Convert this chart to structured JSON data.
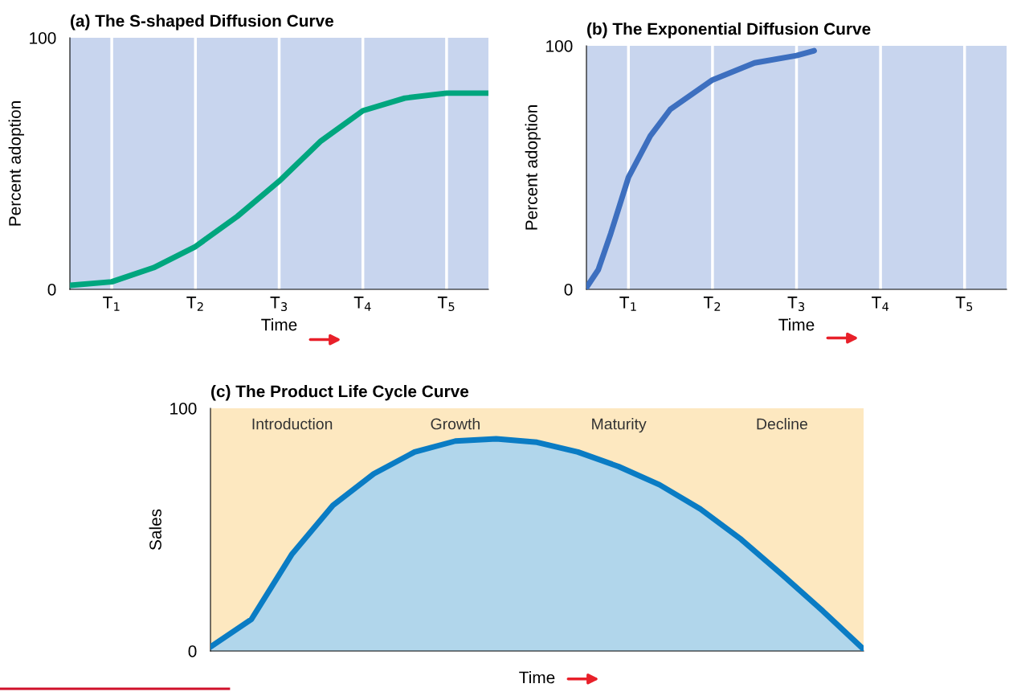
{
  "chart_data": [
    {
      "type": "line",
      "title": "(a) The S-shaped Diffusion Curve",
      "xlabel": "Time",
      "ylabel": "Percent adoption",
      "x": [
        0,
        0.5,
        1.0,
        1.5,
        2.0,
        2.5,
        3.0,
        3.5,
        4.0,
        4.5,
        5.0
      ],
      "series": [
        {
          "color": "#00a67e",
          "values": [
            1.6,
            3,
            8.6,
            17,
            29,
            43,
            59,
            71,
            76,
            78,
            78
          ]
        }
      ],
      "xlim": [
        0,
        5
      ],
      "xticks": [
        {
          "value": 0.5,
          "label": "T$_{1}$"
        },
        {
          "value": 1.5,
          "label": "T$_{2}$"
        },
        {
          "value": 2.5,
          "label": "T$_{3}$"
        },
        {
          "value": 3.5,
          "label": "T$_{4}$"
        },
        {
          "value": 4.5,
          "label": "T$_{5}$"
        }
      ],
      "ylim": [
        0,
        100
      ],
      "yticks": [
        0,
        100
      ],
      "grid": "x",
      "marker": "none",
      "line_style": "solid"
    },
    {
      "type": "line",
      "title": "(b) The Exponential Diffusion Curve",
      "xlabel": "Time",
      "ylabel": "Percent adoption",
      "x": [
        0,
        0.14,
        0.29,
        0.5,
        0.76,
        1.0,
        1.5,
        2.0,
        2.5,
        2.71
      ],
      "series": [
        {
          "color": "#3d6fbf",
          "values": [
            0.7,
            8,
            23,
            46,
            63,
            74,
            86,
            93,
            96,
            98
          ]
        }
      ],
      "xlim": [
        0,
        5
      ],
      "xticks": [
        {
          "value": 0.5,
          "label": "T$_{1}$"
        },
        {
          "value": 1.5,
          "label": "T$_{2}$"
        },
        {
          "value": 2.5,
          "label": "T$_{3}$"
        },
        {
          "value": 3.5,
          "label": "T$_{4}$"
        },
        {
          "value": 4.5,
          "label": "T$_{5}$"
        }
      ],
      "ylim": [
        0,
        100
      ],
      "yticks": [
        0,
        100
      ],
      "grid": "x",
      "marker": "none",
      "line_style": "solid"
    },
    {
      "type": "area",
      "title": "(c) The Product Life Cycle Curve",
      "xlabel": "Time",
      "ylabel": "Sales",
      "categories": [
        null,
        null,
        null,
        null,
        null,
        null,
        null,
        null,
        null,
        null,
        null,
        null,
        null,
        null,
        null,
        null,
        null
      ],
      "series": [
        {
          "color": "#0a7cc4",
          "values": [
            1.7,
            13,
            40,
            60,
            73,
            82,
            86.5,
            87.4,
            86,
            82,
            76,
            68.5,
            58.5,
            46,
            31.5,
            16.5,
            0.7
          ]
        }
      ],
      "ylim": [
        0,
        100
      ],
      "yticks": [
        0,
        100
      ],
      "grid": false,
      "annotations": [
        "Introduction",
        "Growth",
        "Maturity",
        "Decline"
      ]
    }
  ]
}
